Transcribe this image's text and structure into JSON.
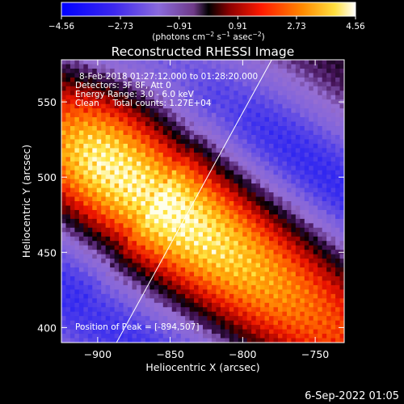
{
  "chart_data": {
    "type": "heatmap",
    "title": "Reconstructed RHESSI Image",
    "xlabel": "Heliocentric X (arcsec)",
    "ylabel": "Heliocentric Y (arcsec)",
    "xlim": [
      -925,
      -730
    ],
    "ylim": [
      390,
      578
    ],
    "xticks": [
      -900,
      -850,
      -800,
      -750
    ],
    "yticks": [
      400,
      450,
      500,
      550
    ],
    "xtick_labels": [
      "−900",
      "−850",
      "−800",
      "−750"
    ],
    "ytick_labels": [
      "400",
      "450",
      "500",
      "550"
    ],
    "colorbar": {
      "range": [
        -4.56,
        4.56
      ],
      "ticks": [
        -4.56,
        -2.73,
        -0.91,
        0.91,
        2.73,
        4.56
      ],
      "tick_labels": [
        "−4.56",
        "−2.73",
        "−0.91",
        "0.91",
        "2.73",
        "4.56"
      ],
      "unit_label_parts": [
        "(photons cm",
        "−2",
        " s",
        "−1",
        " asec",
        "−2",
        ")"
      ]
    },
    "peak_position": [
      -894,
      507
    ],
    "peak_value": 4.56,
    "source_structure": "bright elongated source extending from upper-left peak toward lower-right, with negative (blue) lobes above and below",
    "limb_line": [
      [
        -887,
        390
      ],
      [
        -780,
        578
      ]
    ],
    "annotations": [
      "8-Feb-2018 01:27:12.000 to 01:28:20.000",
      "Detectors: 3F 8F, Att 0",
      "Energy Range: 3.0 - 6.0 keV",
      "Clean     Total counts: 1.27E+04"
    ],
    "peak_annotation": "Position of Peak = [-894,507]",
    "colors": {
      "scale": [
        "#0000ff",
        "#6f58d5",
        "#a87ec8",
        "#3a0a44",
        "#000000",
        "#9a0000",
        "#ff2000",
        "#ff9000",
        "#ffe040",
        "#ffffff"
      ]
    }
  },
  "footer": {
    "date": "6-Sep-2022 01:05"
  }
}
